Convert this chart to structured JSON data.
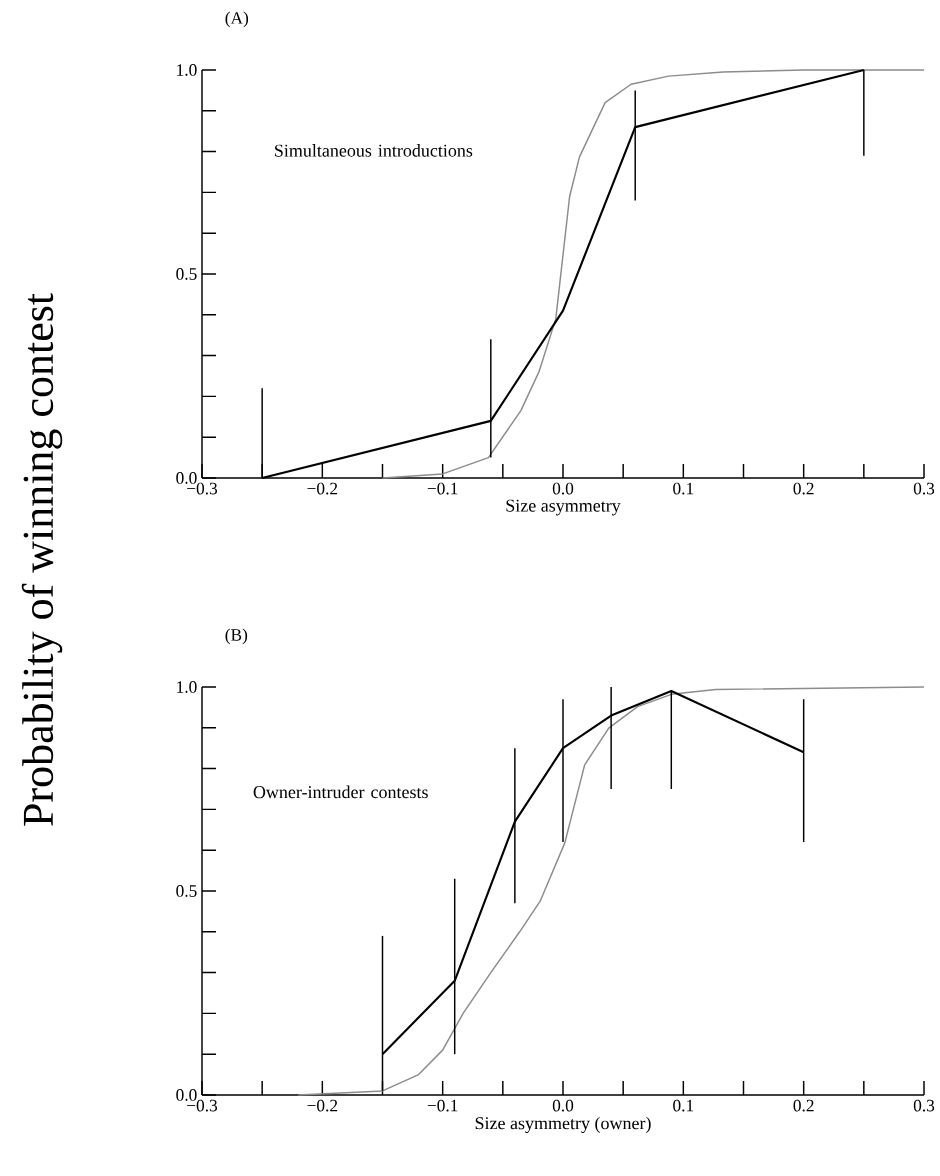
{
  "chart_data": [
    {
      "type": "line",
      "title": "(A)",
      "xlabel": "Size asymmetry",
      "ylabel": "Probability of winning contest",
      "annotations": [
        "Simultaneous introductions"
      ],
      "marker": "none",
      "xlim": [
        -0.3,
        0.3
      ],
      "ylim": [
        0,
        1
      ],
      "xticks": [
        {
          "value": -0.3,
          "label": "−0.3"
        },
        {
          "value": -0.25,
          "label": null
        },
        {
          "value": -0.2,
          "label": "−0.2"
        },
        {
          "value": -0.15,
          "label": null
        },
        {
          "value": -0.1,
          "label": "−0.1"
        },
        {
          "value": -0.05,
          "label": null
        },
        {
          "value": 0,
          "label": "0.0"
        },
        {
          "value": 0.05,
          "label": null
        },
        {
          "value": 0.1,
          "label": "0.1"
        },
        {
          "value": 0.15,
          "label": null
        },
        {
          "value": 0.2,
          "label": "0.2"
        },
        {
          "value": 0.25,
          "label": null
        },
        {
          "value": 0.3,
          "label": "0.3"
        }
      ],
      "yticks": [
        {
          "value": 0,
          "label": "0.0"
        },
        {
          "value": 0.1,
          "label": null
        },
        {
          "value": 0.2,
          "label": null
        },
        {
          "value": 0.3,
          "label": null
        },
        {
          "value": 0.4,
          "label": null
        },
        {
          "value": 0.5,
          "label": "0.5"
        },
        {
          "value": 0.6,
          "label": null
        },
        {
          "value": 0.7,
          "label": null
        },
        {
          "value": 0.8,
          "label": null
        },
        {
          "value": 0.9,
          "label": null
        },
        {
          "value": 1,
          "label": "1.0"
        }
      ],
      "series": [
        {
          "color": "#8c8c8c",
          "x": [
            -0.15,
            -0.1,
            -0.062,
            -0.035,
            -0.02,
            -0.006,
            0.0055,
            0.0137,
            0.035,
            0.0566,
            0.0877,
            0.133,
            0.2,
            0.3
          ],
          "values": [
            0,
            0.01,
            0.05,
            0.165,
            0.26,
            0.39,
            0.69,
            0.787,
            0.92,
            0.965,
            0.985,
            0.995,
            1.0,
            1.0
          ]
        },
        {
          "color": "#000000",
          "x": [
            -0.25,
            -0.06,
            0.0,
            0.06,
            0.25
          ],
          "values": [
            0,
            0.14,
            0.41,
            0.86,
            1.0
          ],
          "errors": [
            [
              0,
              0.22
            ],
            [
              0.05,
              0.34
            ],
            null,
            [
              0.68,
              0.95
            ],
            [
              0.79,
              1.0
            ]
          ]
        }
      ]
    },
    {
      "type": "line",
      "title": "(B)",
      "xlabel": "Size asymmetry (owner)",
      "annotations": [
        "Owner-intruder contests"
      ],
      "marker": "none",
      "xlim": [
        -0.3,
        0.3
      ],
      "ylim": [
        0,
        1
      ],
      "xticks": [
        {
          "value": -0.3,
          "label": "−0.3"
        },
        {
          "value": -0.25,
          "label": null
        },
        {
          "value": -0.2,
          "label": "−0.2"
        },
        {
          "value": -0.15,
          "label": null
        },
        {
          "value": -0.1,
          "label": "−0.1"
        },
        {
          "value": -0.05,
          "label": null
        },
        {
          "value": 0,
          "label": "0.0"
        },
        {
          "value": 0.05,
          "label": null
        },
        {
          "value": 0.1,
          "label": "0.1"
        },
        {
          "value": 0.15,
          "label": null
        },
        {
          "value": 0.2,
          "label": "0.2"
        },
        {
          "value": 0.25,
          "label": null
        },
        {
          "value": 0.3,
          "label": "0.3"
        }
      ],
      "yticks": [
        {
          "value": 0,
          "label": "0.0"
        },
        {
          "value": 0.1,
          "label": null
        },
        {
          "value": 0.2,
          "label": null
        },
        {
          "value": 0.3,
          "label": null
        },
        {
          "value": 0.4,
          "label": null
        },
        {
          "value": 0.5,
          "label": "0.5"
        },
        {
          "value": 0.6,
          "label": null
        },
        {
          "value": 0.7,
          "label": null
        },
        {
          "value": 0.8,
          "label": null
        },
        {
          "value": 0.9,
          "label": null
        },
        {
          "value": 1,
          "label": "1.0"
        }
      ],
      "series": [
        {
          "color": "#8c8c8c",
          "x": [
            -0.22,
            -0.15,
            -0.12,
            -0.1,
            -0.083,
            -0.06,
            -0.036,
            -0.019,
            0.0015,
            0.018,
            0.038,
            0.062,
            0.09,
            0.127,
            0.3
          ],
          "values": [
            0,
            0.01,
            0.05,
            0.11,
            0.2,
            0.3,
            0.4,
            0.475,
            0.618,
            0.809,
            0.899,
            0.952,
            0.982,
            0.994,
            1.0
          ]
        },
        {
          "color": "#000000",
          "x": [
            -0.15,
            -0.09,
            -0.04,
            0.0,
            0.04,
            0.09,
            0.2
          ],
          "values": [
            0.1,
            0.28,
            0.67,
            0.85,
            0.93,
            0.99,
            0.84
          ],
          "errors": [
            [
              0.01,
              0.39
            ],
            [
              0.1,
              0.53
            ],
            [
              0.47,
              0.85
            ],
            [
              0.62,
              0.97
            ],
            [
              0.75,
              1.0
            ],
            [
              0.75,
              0.99
            ],
            [
              0.62,
              0.97
            ]
          ]
        }
      ]
    }
  ]
}
